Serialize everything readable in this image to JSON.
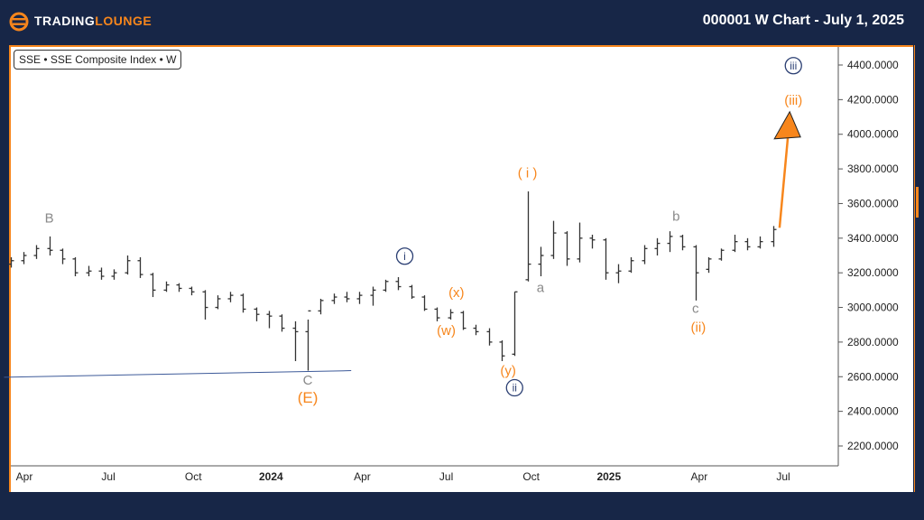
{
  "header": {
    "brand_part1": "TRADING",
    "brand_part2": "LOUNGE",
    "title": "000001 W Chart - July 1, 2025"
  },
  "symbol_label": "SSE • SSE Composite Index • W",
  "colors": {
    "background": "#172647",
    "accent": "#f7861c",
    "bars": "#333333",
    "wave_grey": "#8a8a8a",
    "wave_navy": "#2b3f73"
  },
  "chart_data": {
    "type": "ohlc",
    "title": "",
    "ylim": [
      2050,
      4500
    ],
    "y_ticks": [
      "4400.0000",
      "4200.0000",
      "4000.0000",
      "3800.0000",
      "3600.0000",
      "3400.0000",
      "3200.0000",
      "3000.0000",
      "2800.0000",
      "2600.0000",
      "2400.0000",
      "2200.0000"
    ],
    "x_ticks": [
      {
        "label": "Apr",
        "date": "2023-04-01",
        "bold": false
      },
      {
        "label": "Jul",
        "date": "2023-07-01",
        "bold": false
      },
      {
        "label": "Oct",
        "date": "2023-10-01",
        "bold": false
      },
      {
        "label": "2024",
        "date": "2024-01-01",
        "bold": true
      },
      {
        "label": "Apr",
        "date": "2024-04-01",
        "bold": false
      },
      {
        "label": "Jul",
        "date": "2024-07-01",
        "bold": false
      },
      {
        "label": "Oct",
        "date": "2024-10-01",
        "bold": false
      },
      {
        "label": "2025",
        "date": "2025-01-01",
        "bold": true
      },
      {
        "label": "Apr",
        "date": "2025-04-01",
        "bold": false
      },
      {
        "label": "Jul",
        "date": "2025-07-01",
        "bold": false
      }
    ],
    "bars": [
      [
        "2023-03-17",
        3250,
        3290,
        3230,
        3270
      ],
      [
        "2023-03-31",
        3270,
        3320,
        3250,
        3300
      ],
      [
        "2023-04-14",
        3300,
        3360,
        3280,
        3340
      ],
      [
        "2023-04-28",
        3340,
        3410,
        3300,
        3330
      ],
      [
        "2023-05-12",
        3330,
        3340,
        3250,
        3280
      ],
      [
        "2023-05-26",
        3280,
        3290,
        3180,
        3200
      ],
      [
        "2023-06-09",
        3200,
        3240,
        3180,
        3210
      ],
      [
        "2023-06-23",
        3210,
        3230,
        3160,
        3180
      ],
      [
        "2023-07-07",
        3180,
        3220,
        3160,
        3200
      ],
      [
        "2023-07-21",
        3200,
        3300,
        3190,
        3270
      ],
      [
        "2023-08-04",
        3270,
        3290,
        3170,
        3190
      ],
      [
        "2023-08-18",
        3190,
        3200,
        3060,
        3100
      ],
      [
        "2023-09-01",
        3100,
        3150,
        3090,
        3130
      ],
      [
        "2023-09-15",
        3130,
        3140,
        3090,
        3110
      ],
      [
        "2023-09-29",
        3110,
        3120,
        3070,
        3090
      ],
      [
        "2023-10-13",
        3090,
        3100,
        2930,
        3000
      ],
      [
        "2023-10-27",
        3000,
        3070,
        2990,
        3050
      ],
      [
        "2023-11-10",
        3050,
        3090,
        3030,
        3070
      ],
      [
        "2023-11-24",
        3070,
        3080,
        2970,
        2990
      ],
      [
        "2023-12-08",
        2990,
        3000,
        2920,
        2960
      ],
      [
        "2023-12-22",
        2960,
        2980,
        2880,
        2950
      ],
      [
        "2024-01-05",
        2950,
        2960,
        2860,
        2880
      ],
      [
        "2024-01-19",
        2880,
        2920,
        2690,
        2860
      ],
      [
        "2024-02-02",
        2860,
        2930,
        2635,
        2980
      ],
      [
        "2024-02-16",
        2980,
        3050,
        2960,
        3040
      ],
      [
        "2024-03-01",
        3040,
        3080,
        3020,
        3060
      ],
      [
        "2024-03-15",
        3060,
        3090,
        3030,
        3050
      ],
      [
        "2024-03-29",
        3050,
        3090,
        3020,
        3070
      ],
      [
        "2024-04-12",
        3070,
        3120,
        3010,
        3100
      ],
      [
        "2024-04-26",
        3100,
        3160,
        3090,
        3150
      ],
      [
        "2024-05-10",
        3150,
        3175,
        3100,
        3120
      ],
      [
        "2024-05-24",
        3120,
        3130,
        3050,
        3060
      ],
      [
        "2024-06-07",
        3060,
        3070,
        2980,
        2990
      ],
      [
        "2024-06-21",
        2990,
        3000,
        2920,
        2940
      ],
      [
        "2024-07-05",
        2940,
        2990,
        2930,
        2970
      ],
      [
        "2024-07-19",
        2970,
        2980,
        2870,
        2880
      ],
      [
        "2024-08-02",
        2880,
        2900,
        2840,
        2860
      ],
      [
        "2024-08-16",
        2860,
        2880,
        2780,
        2800
      ],
      [
        "2024-08-30",
        2800,
        2810,
        2690,
        2720
      ],
      [
        "2024-09-13",
        2730,
        3090,
        2720,
        3090
      ],
      [
        "2024-09-27",
        3160,
        3670,
        3150,
        3250
      ],
      [
        "2024-10-11",
        3250,
        3350,
        3180,
        3300
      ],
      [
        "2024-10-25",
        3300,
        3500,
        3280,
        3430
      ],
      [
        "2024-11-08",
        3430,
        3440,
        3240,
        3280
      ],
      [
        "2024-11-22",
        3280,
        3490,
        3260,
        3400
      ],
      [
        "2024-12-06",
        3400,
        3420,
        3340,
        3390
      ],
      [
        "2024-12-20",
        3390,
        3400,
        3160,
        3200
      ],
      [
        "2025-01-03",
        3200,
        3250,
        3140,
        3210
      ],
      [
        "2025-01-17",
        3210,
        3290,
        3200,
        3270
      ],
      [
        "2025-01-31",
        3270,
        3360,
        3250,
        3340
      ],
      [
        "2025-02-14",
        3340,
        3400,
        3300,
        3370
      ],
      [
        "2025-02-28",
        3370,
        3440,
        3320,
        3410
      ],
      [
        "2025-03-14",
        3410,
        3420,
        3330,
        3350
      ],
      [
        "2025-03-28",
        3350,
        3360,
        3040,
        3200
      ],
      [
        "2025-04-11",
        3220,
        3290,
        3200,
        3280
      ],
      [
        "2025-04-25",
        3280,
        3340,
        3270,
        3330
      ],
      [
        "2025-05-09",
        3330,
        3420,
        3320,
        3380
      ],
      [
        "2025-05-23",
        3380,
        3400,
        3330,
        3350
      ],
      [
        "2025-06-06",
        3350,
        3410,
        3340,
        3380
      ],
      [
        "2025-06-20",
        3380,
        3470,
        3350,
        3450
      ]
    ],
    "wave_labels": [
      {
        "text": "B",
        "date": "2023-04-28",
        "price": 3490,
        "style": "grey"
      },
      {
        "text": "C",
        "date": "2024-02-02",
        "price": 2555,
        "style": "grey"
      },
      {
        "text": "(E)",
        "date": "2024-02-02",
        "price": 2450,
        "style": "orange-big"
      },
      {
        "text": "i",
        "date": "2024-05-17",
        "price": 3270,
        "style": "navy-circle"
      },
      {
        "text": "(w)",
        "date": "2024-07-01",
        "price": 2840,
        "style": "orange"
      },
      {
        "text": "(x)",
        "date": "2024-07-12",
        "price": 3060,
        "style": "orange"
      },
      {
        "text": "(y)",
        "date": "2024-09-06",
        "price": 2610,
        "style": "orange"
      },
      {
        "text": "ii",
        "date": "2024-09-13",
        "price": 2510,
        "style": "navy-circle"
      },
      {
        "text": "( i )",
        "date": "2024-09-27",
        "price": 3750,
        "style": "orange"
      },
      {
        "text": "a",
        "date": "2024-10-11",
        "price": 3090,
        "style": "grey"
      },
      {
        "text": "b",
        "date": "2025-03-07",
        "price": 3500,
        "style": "grey"
      },
      {
        "text": "c",
        "date": "2025-03-28",
        "price": 2970,
        "style": "grey"
      },
      {
        "text": "(ii)",
        "date": "2025-03-31",
        "price": 2860,
        "style": "orange"
      },
      {
        "text": "iii",
        "date": "2025-07-12",
        "price": 4370,
        "style": "navy-circle"
      },
      {
        "text": "(iii)",
        "date": "2025-07-12",
        "price": 4170,
        "style": "orange"
      }
    ],
    "trend_line": {
      "from": {
        "date": "2023-03-10",
        "price": 2597
      },
      "to": {
        "date": "2024-03-20",
        "price": 2635
      }
    },
    "projection_arrow": {
      "from": {
        "date": "2025-06-27",
        "price": 3460
      },
      "to": {
        "date": "2025-07-08",
        "price": 4130
      }
    }
  }
}
